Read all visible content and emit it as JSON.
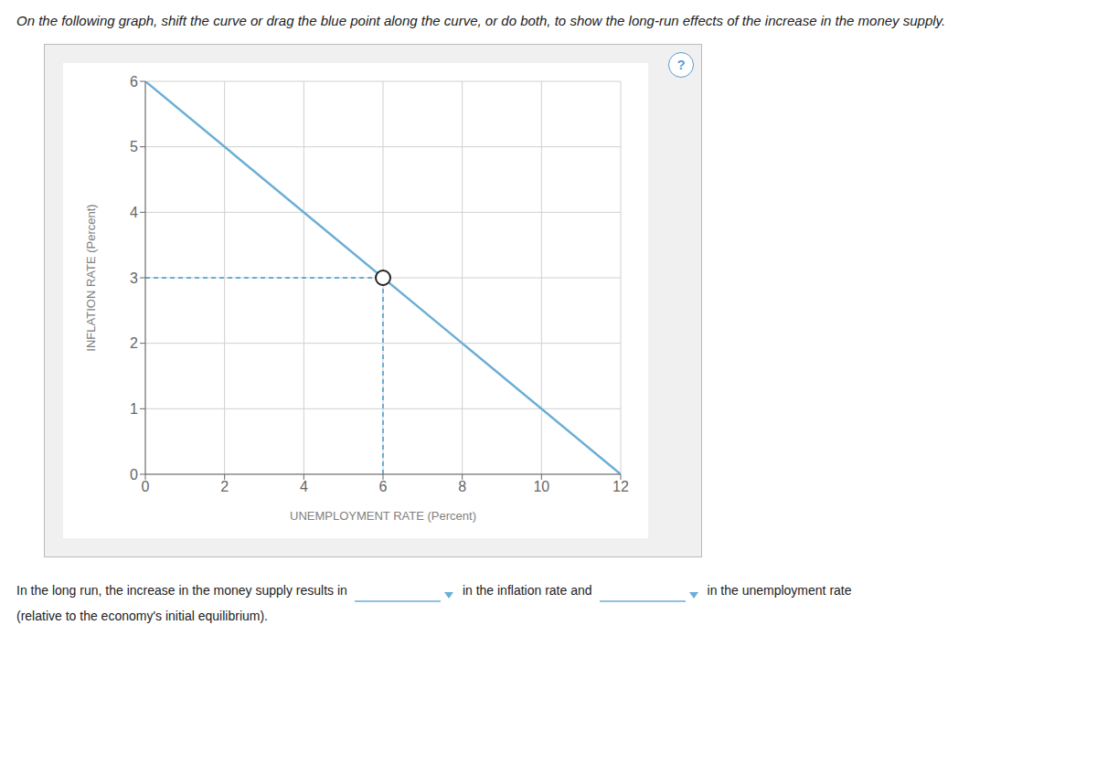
{
  "chart_data": {
    "type": "line",
    "title": "On the following graph, shift the curve or drag the blue point along the curve, or do both, to show the long-run effects of the increase in the money supply.",
    "xlabel": "UNEMPLOYMENT RATE (Percent)",
    "ylabel": "INFLATION RATE (Percent)",
    "xlim": [
      0,
      12
    ],
    "ylim": [
      0,
      6
    ],
    "xticks": [
      0,
      2,
      4,
      6,
      8,
      10,
      12
    ],
    "yticks": [
      0,
      1,
      2,
      3,
      4,
      5,
      6
    ],
    "grid": true,
    "series": [
      {
        "type": "line",
        "color": "#6aaed6",
        "x": [
          0,
          12
        ],
        "values": [
          6,
          0
        ]
      },
      {
        "type": "line",
        "line_style": "dashed",
        "color": "#6aaed6",
        "x": [
          0,
          6
        ],
        "values": [
          3,
          3
        ]
      },
      {
        "type": "line",
        "line_style": "dashed",
        "color": "#6aaed6",
        "x": [
          6,
          6
        ],
        "values": [
          0,
          3
        ]
      },
      {
        "type": "scatter",
        "marker": "circle",
        "color": "#222222",
        "x": [
          6
        ],
        "values": [
          3
        ]
      }
    ],
    "annotations": [
      "In the long run, the increase in the money supply results in",
      "in the inflation rate and",
      "in the unemployment rate",
      "(relative to the economy's initial equilibrium).",
      "?"
    ]
  }
}
